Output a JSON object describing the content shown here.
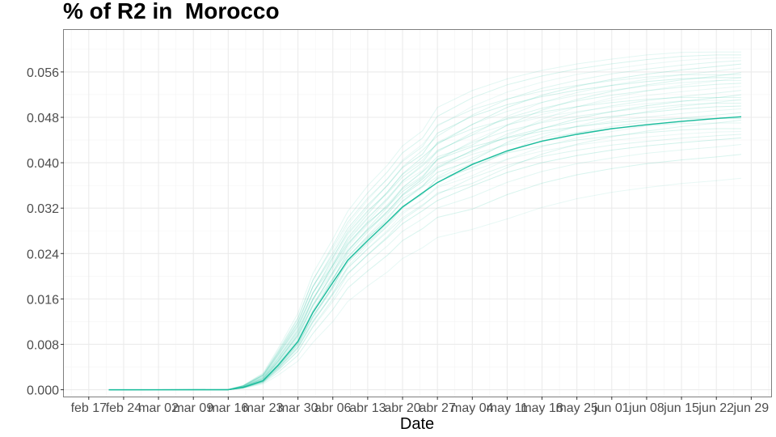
{
  "chart_data": {
    "type": "line",
    "title": "% of R2 in  Morocco",
    "xlabel": "Date",
    "ylabel": "",
    "x_ticks": [
      "feb 17",
      "feb 24",
      "mar 02",
      "mar 09",
      "mar 16",
      "mar 23",
      "mar 30",
      "abr 06",
      "abr 13",
      "abr 20",
      "abr 27",
      "may 04",
      "may 11",
      "may 18",
      "may 25",
      "jun 01",
      "jun 08",
      "jun 15",
      "jun 22",
      "jun 29"
    ],
    "x_tick_dates": [
      "2020-02-17",
      "2020-02-24",
      "2020-03-02",
      "2020-03-09",
      "2020-03-16",
      "2020-03-23",
      "2020-03-30",
      "2020-04-06",
      "2020-04-13",
      "2020-04-20",
      "2020-04-27",
      "2020-05-04",
      "2020-05-11",
      "2020-05-18",
      "2020-05-25",
      "2020-06-01",
      "2020-06-08",
      "2020-06-15",
      "2020-06-22",
      "2020-06-29"
    ],
    "y_ticks": [
      "0.000",
      "0.008",
      "0.016",
      "0.024",
      "0.032",
      "0.040",
      "0.048",
      "0.056"
    ],
    "xlim": [
      "2020-02-12",
      "2020-07-03"
    ],
    "ylim": [
      -0.0012,
      0.0634
    ],
    "grid": true,
    "legend": "none",
    "color": "#1abc9c",
    "series": [
      {
        "role": "median",
        "x": [
          "2020-02-21",
          "2020-03-16",
          "2020-03-19",
          "2020-03-23",
          "2020-03-26",
          "2020-03-30",
          "2020-04-02",
          "2020-04-06",
          "2020-04-09",
          "2020-04-13",
          "2020-04-17",
          "2020-04-20",
          "2020-04-24",
          "2020-04-27",
          "2020-05-04",
          "2020-05-11",
          "2020-05-18",
          "2020-05-25",
          "2020-06-01",
          "2020-06-08",
          "2020-06-15",
          "2020-06-22",
          "2020-06-27"
        ],
        "values": [
          0.0,
          0.0,
          0.0004,
          0.0016,
          0.0043,
          0.0085,
          0.0136,
          0.0189,
          0.0228,
          0.0263,
          0.0296,
          0.0322,
          0.0347,
          0.0365,
          0.0397,
          0.0421,
          0.0438,
          0.045,
          0.046,
          0.0467,
          0.0473,
          0.0478,
          0.0481
        ]
      },
      {
        "role": "simulations",
        "x": [
          "2020-02-21",
          "2020-03-16",
          "2020-03-19",
          "2020-03-23",
          "2020-03-26",
          "2020-03-30",
          "2020-04-02",
          "2020-04-06",
          "2020-04-09",
          "2020-04-13",
          "2020-04-17",
          "2020-04-20",
          "2020-04-24",
          "2020-04-27",
          "2020-05-04",
          "2020-05-11",
          "2020-05-18",
          "2020-05-25",
          "2020-06-01",
          "2020-06-08",
          "2020-06-15",
          "2020-06-22",
          "2020-06-27"
        ],
        "final_values": [
          0.038,
          0.042,
          0.0435,
          0.0445,
          0.045,
          0.0455,
          0.046,
          0.047,
          0.0478,
          0.0482,
          0.0486,
          0.049,
          0.0495,
          0.05,
          0.0505,
          0.051,
          0.0515,
          0.052,
          0.0525,
          0.053,
          0.0535,
          0.054,
          0.0545,
          0.055,
          0.0555,
          0.056,
          0.0565,
          0.057,
          0.0575,
          0.058,
          0.0585,
          0.059,
          0.0595
        ]
      }
    ]
  }
}
